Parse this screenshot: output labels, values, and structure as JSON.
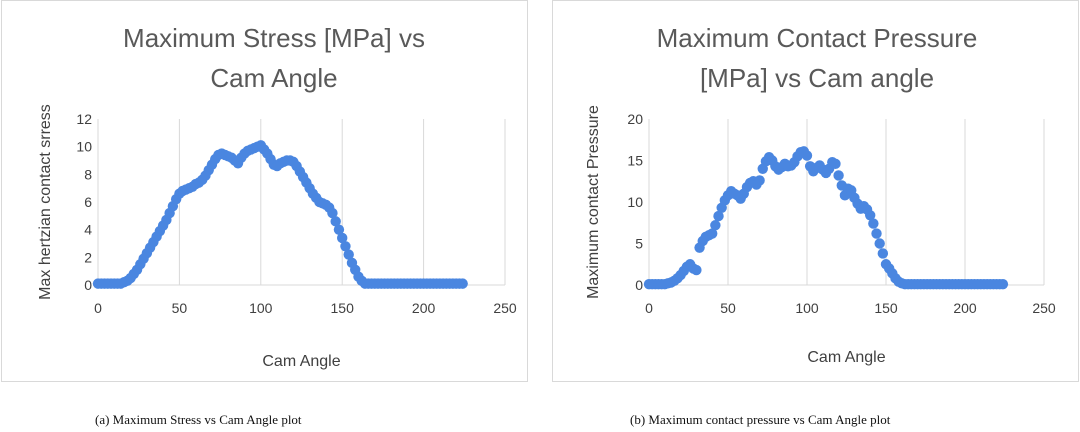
{
  "captions": {
    "a": "(a) Maximum Stress vs Cam Angle plot",
    "b": "(b) Maximum contact pressure vs Cam Angle plot"
  },
  "chart_data": [
    {
      "type": "scatter",
      "title_lines": [
        "Maximum Stress [MPa] vs",
        "Cam Angle"
      ],
      "xlabel": "Cam Angle",
      "ylabel": "Max hertzian contact srress",
      "xlim": [
        0,
        250
      ],
      "ylim": [
        0,
        12
      ],
      "xticks": [
        0,
        50,
        100,
        150,
        200,
        250
      ],
      "yticks": [
        0,
        2,
        4,
        6,
        8,
        10,
        12
      ],
      "grid": "vertical",
      "color": "#4a86e0",
      "series": [
        {
          "x": [
            0,
            2,
            4,
            6,
            8,
            10,
            12,
            14,
            16,
            18,
            20,
            22,
            24,
            26,
            28,
            30,
            32,
            34,
            36,
            38,
            40,
            42,
            44,
            46,
            48,
            50,
            52,
            54,
            56,
            58,
            60,
            62,
            64,
            66,
            68,
            70,
            72,
            74,
            76,
            78,
            80,
            82,
            84,
            86,
            88,
            90,
            92,
            94,
            96,
            98,
            100,
            102,
            104,
            106,
            108,
            110,
            112,
            114,
            116,
            118,
            120,
            122,
            124,
            126,
            128,
            130,
            132,
            134,
            136,
            138,
            140,
            142,
            144,
            146,
            148,
            150,
            152,
            154,
            156,
            158,
            160,
            162,
            164,
            166,
            168,
            170,
            172,
            174,
            176,
            178,
            180,
            182,
            184,
            186,
            188,
            190,
            192,
            194,
            196,
            198,
            200,
            202,
            204,
            206,
            208,
            210,
            212,
            214,
            216,
            218,
            220,
            222,
            224
          ],
          "y": [
            0.1,
            0.1,
            0.1,
            0.1,
            0.1,
            0.1,
            0.1,
            0.1,
            0.2,
            0.3,
            0.5,
            0.8,
            1.1,
            1.5,
            1.9,
            2.3,
            2.7,
            3.1,
            3.5,
            3.9,
            4.3,
            4.7,
            5.2,
            5.7,
            6.2,
            6.6,
            6.8,
            6.9,
            7.0,
            7.1,
            7.3,
            7.4,
            7.6,
            7.9,
            8.3,
            8.7,
            9.1,
            9.4,
            9.5,
            9.4,
            9.3,
            9.2,
            9.0,
            8.8,
            9.2,
            9.5,
            9.7,
            9.8,
            9.9,
            10.0,
            10.1,
            9.8,
            9.5,
            9.1,
            8.7,
            8.6,
            8.8,
            8.9,
            9.0,
            9.0,
            8.9,
            8.6,
            8.2,
            7.8,
            7.4,
            7.0,
            6.6,
            6.3,
            6.0,
            5.9,
            5.8,
            5.6,
            5.2,
            4.6,
            4.0,
            3.4,
            2.8,
            2.2,
            1.6,
            1.1,
            0.6,
            0.3,
            0.1,
            0.1,
            0.1,
            0.1,
            0.1,
            0.1,
            0.1,
            0.1,
            0.1,
            0.1,
            0.1,
            0.1,
            0.1,
            0.1,
            0.1,
            0.1,
            0.1,
            0.1,
            0.1,
            0.1,
            0.1,
            0.1,
            0.1,
            0.1,
            0.1,
            0.1,
            0.1,
            0.1,
            0.1,
            0.1,
            0.1
          ]
        }
      ]
    },
    {
      "type": "scatter",
      "title_lines": [
        "Maximum Contact Pressure",
        "[MPa] vs Cam angle"
      ],
      "xlabel": "Cam Angle",
      "ylabel": "Maximum contact Pressure",
      "xlim": [
        0,
        250
      ],
      "ylim": [
        0,
        20
      ],
      "xticks": [
        0,
        50,
        100,
        150,
        200,
        250
      ],
      "yticks": [
        0,
        5,
        10,
        15,
        20
      ],
      "grid": "vertical",
      "color": "#4a86e0",
      "series": [
        {
          "x": [
            0,
            2,
            4,
            6,
            8,
            10,
            12,
            14,
            16,
            18,
            20,
            22,
            24,
            26,
            28,
            30,
            32,
            34,
            36,
            38,
            40,
            42,
            44,
            46,
            48,
            50,
            52,
            54,
            56,
            58,
            60,
            62,
            64,
            66,
            68,
            70,
            72,
            74,
            76,
            78,
            80,
            82,
            84,
            86,
            88,
            90,
            92,
            94,
            96,
            98,
            100,
            102,
            104,
            106,
            108,
            110,
            112,
            114,
            116,
            118,
            120,
            122,
            124,
            126,
            128,
            130,
            132,
            134,
            136,
            138,
            140,
            142,
            144,
            146,
            148,
            150,
            152,
            154,
            156,
            158,
            160,
            162,
            164,
            166,
            168,
            170,
            172,
            174,
            176,
            178,
            180,
            182,
            184,
            186,
            188,
            190,
            192,
            194,
            196,
            198,
            200,
            202,
            204,
            206,
            208,
            210,
            212,
            214,
            216,
            218,
            220,
            222,
            224
          ],
          "y": [
            0.1,
            0.1,
            0.1,
            0.1,
            0.1,
            0.1,
            0.2,
            0.3,
            0.5,
            0.8,
            1.2,
            1.7,
            2.2,
            2.5,
            2.0,
            1.8,
            4.5,
            5.3,
            5.8,
            6.0,
            6.2,
            7.2,
            8.3,
            9.3,
            10.2,
            10.8,
            11.3,
            11.0,
            10.8,
            10.4,
            11.0,
            11.8,
            12.3,
            12.5,
            12.1,
            12.6,
            14.0,
            14.9,
            15.4,
            15.0,
            14.3,
            13.9,
            14.2,
            14.6,
            14.3,
            14.4,
            14.8,
            15.5,
            16.0,
            16.1,
            15.6,
            14.3,
            13.7,
            14.1,
            14.4,
            13.9,
            13.5,
            14.0,
            14.8,
            14.6,
            13.2,
            12.0,
            10.8,
            11.6,
            11.4,
            10.5,
            9.8,
            9.2,
            9.5,
            9.1,
            8.4,
            7.4,
            6.2,
            5.0,
            3.8,
            2.5,
            2.0,
            1.4,
            0.8,
            0.4,
            0.2,
            0.1,
            0.1,
            0.1,
            0.1,
            0.1,
            0.1,
            0.1,
            0.1,
            0.1,
            0.1,
            0.1,
            0.1,
            0.1,
            0.1,
            0.1,
            0.1,
            0.1,
            0.1,
            0.1,
            0.1,
            0.1,
            0.1,
            0.1,
            0.1,
            0.1,
            0.1,
            0.1,
            0.1,
            0.1,
            0.1,
            0.1,
            0.1
          ]
        }
      ]
    }
  ]
}
